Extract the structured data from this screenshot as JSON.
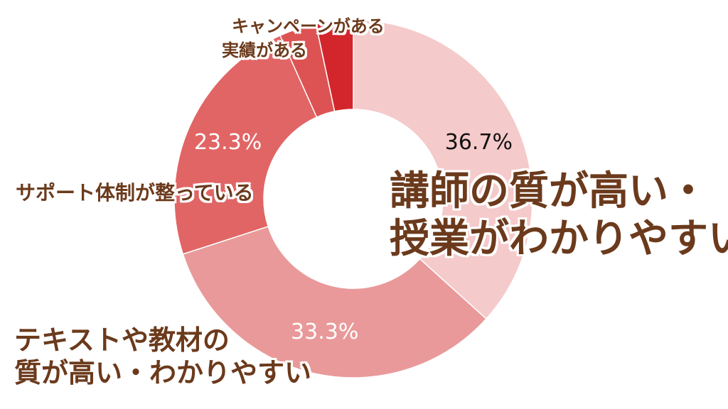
{
  "chart_data": {
    "type": "pie",
    "donut": true,
    "slices": [
      {
        "label_lines": [
          "講師の質が高い・",
          "授業がわかりやすい"
        ],
        "value": 36.7,
        "value_label": "36.7%",
        "color": "#f5caca",
        "value_label_color": "#111111"
      },
      {
        "label_lines": [
          "テキストや教材の",
          "質が高い・わかりやすい"
        ],
        "value": 33.3,
        "value_label": "33.3%",
        "color": "#e99999",
        "value_label_color": "#ffffff"
      },
      {
        "label_lines": [
          "サポート体制が整っている"
        ],
        "value": 23.3,
        "value_label": "23.3%",
        "color": "#e16565",
        "value_label_color": "#ffffff"
      },
      {
        "label_lines": [
          "実績がある"
        ],
        "value": 3.35,
        "value_label": "",
        "color": "#dd5353",
        "value_label_color": "#ffffff"
      },
      {
        "label_lines": [
          "キャンペーンがある"
        ],
        "value": 3.35,
        "value_label": "",
        "color": "#d2262c",
        "value_label_color": "#ffffff"
      }
    ],
    "start": "top",
    "direction": "clockwise",
    "legend": "none"
  }
}
